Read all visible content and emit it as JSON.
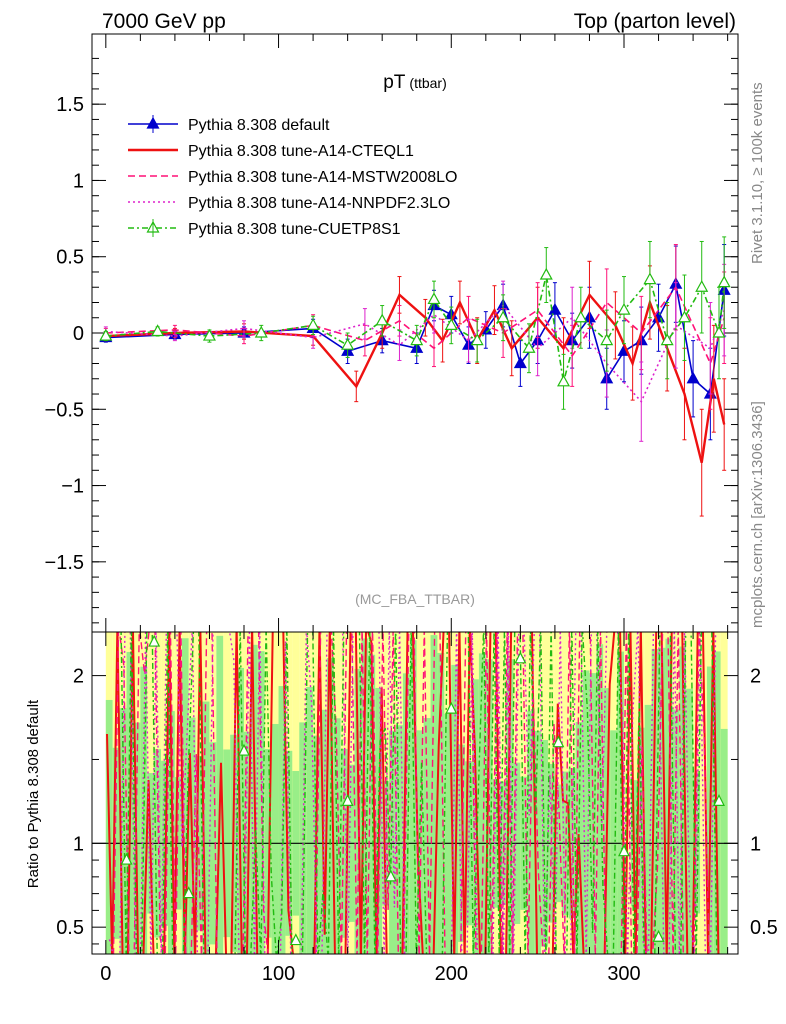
{
  "header": {
    "left": "7000 GeV pp",
    "right": "Top (parton level)"
  },
  "side_labels": {
    "rivet": "Rivet 3.1.10, ≥ 100k events",
    "mcplots": "mcplots.cern.ch [arXiv:1306.3436]"
  },
  "chart_data": {
    "type": "line",
    "title": "pT",
    "title_sub": "(ttbar)",
    "analysis_tag": "(MC_FBA_TTBAR)",
    "xlabel": "",
    "ylabel": "",
    "xlim": [
      -8,
      366
    ],
    "main_ylim": [
      -1.96,
      1.96
    ],
    "main_yticks": [
      {
        "v": 1.5,
        "label": "1.5"
      },
      {
        "v": 1,
        "label": "1"
      },
      {
        "v": 0.5,
        "label": "0.5"
      },
      {
        "v": 0,
        "label": "0"
      },
      {
        "v": -0.5,
        "label": "−0.5"
      },
      {
        "v": -1,
        "label": "−1"
      },
      {
        "v": -1.5,
        "label": "−1.5"
      }
    ],
    "xticks": [
      {
        "v": 0,
        "label": "0"
      },
      {
        "v": 100,
        "label": "100"
      },
      {
        "v": 200,
        "label": "200"
      },
      {
        "v": 300,
        "label": "300"
      }
    ],
    "ratio_ylabel": "Ratio to Pythia 8.308 default",
    "ratio_ylim": [
      0.34,
      2.26
    ],
    "ratio_yticks": [
      {
        "v": 2,
        "label": "2"
      },
      {
        "v": 1,
        "label": "1"
      },
      {
        "v": 0.5,
        "label": "0.5"
      }
    ],
    "legend": [
      {
        "name": "Pythia 8.308 default",
        "color": "#0000cc",
        "style": "solid",
        "marker": "triangle-filled"
      },
      {
        "name": "Pythia 8.308 tune-A14-CTEQL1",
        "color": "#ee1111",
        "style": "solid",
        "marker": "none"
      },
      {
        "name": "Pythia 8.308 tune-A14-MSTW2008LO",
        "color": "#ff1177",
        "style": "dashed",
        "marker": "none"
      },
      {
        "name": "Pythia 8.308 tune-A14-NNPDF2.3LO",
        "color": "#dd22cc",
        "style": "dotted",
        "marker": "none"
      },
      {
        "name": "Pythia 8.308 tune-CUETP8S1",
        "color": "#22bb11",
        "style": "dashdot",
        "marker": "triangle-open"
      }
    ],
    "series": [
      {
        "name": "Pythia 8.308 default",
        "x": [
          0,
          40,
          80,
          120,
          140,
          160,
          180,
          190,
          200,
          210,
          220,
          230,
          240,
          250,
          260,
          270,
          280,
          290,
          300,
          310,
          320,
          330,
          340,
          350,
          358
        ],
        "y": [
          -0.03,
          -0.01,
          0.0,
          0.03,
          -0.12,
          -0.05,
          -0.1,
          0.18,
          0.12,
          -0.08,
          0.02,
          0.18,
          -0.2,
          -0.05,
          0.15,
          -0.05,
          0.1,
          -0.3,
          -0.12,
          -0.05,
          0.1,
          0.32,
          -0.3,
          -0.4,
          0.28
        ],
        "err": [
          0.03,
          0.03,
          0.04,
          0.06,
          0.08,
          0.08,
          0.1,
          0.1,
          0.12,
          0.12,
          0.12,
          0.14,
          0.15,
          0.15,
          0.18,
          0.18,
          0.2,
          0.2,
          0.2,
          0.22,
          0.22,
          0.25,
          0.25,
          0.3,
          0.3
        ]
      },
      {
        "name": "Pythia 8.308 tune-A14-CTEQL1",
        "x": [
          0,
          40,
          80,
          120,
          145,
          160,
          170,
          185,
          195,
          205,
          215,
          225,
          235,
          250,
          265,
          280,
          295,
          305,
          315,
          325,
          335,
          345,
          352,
          358
        ],
        "y": [
          -0.02,
          0.0,
          0.01,
          -0.02,
          -0.35,
          0.0,
          0.25,
          0.1,
          -0.05,
          0.2,
          -0.05,
          0.15,
          -0.1,
          0.1,
          -0.1,
          0.25,
          0.05,
          -0.2,
          0.2,
          -0.1,
          -0.4,
          -0.85,
          -0.3,
          -0.6
        ],
        "err": [
          0.03,
          0.03,
          0.05,
          0.06,
          0.1,
          0.1,
          0.12,
          0.12,
          0.14,
          0.14,
          0.15,
          0.16,
          0.18,
          0.2,
          0.2,
          0.22,
          0.22,
          0.24,
          0.24,
          0.28,
          0.3,
          0.35,
          0.35,
          0.3
        ]
      },
      {
        "name": "Pythia 8.308 tune-A14-MSTW2008LO",
        "x": [
          0,
          40,
          80,
          120,
          150,
          170,
          190,
          210,
          230,
          250,
          270,
          290,
          310,
          330,
          350,
          358
        ],
        "y": [
          0.0,
          0.02,
          -0.02,
          0.05,
          -0.05,
          0.08,
          -0.1,
          0.1,
          0.0,
          0.15,
          -0.15,
          0.2,
          0.0,
          0.3,
          -0.2,
          0.1
        ],
        "err": [
          0.03,
          0.03,
          0.05,
          0.07,
          0.1,
          0.1,
          0.12,
          0.14,
          0.16,
          0.18,
          0.2,
          0.22,
          0.24,
          0.28,
          0.3,
          0.3
        ]
      },
      {
        "name": "Pythia 8.308 tune-A14-NNPDF2.3LO",
        "x": [
          0,
          40,
          80,
          120,
          150,
          170,
          190,
          210,
          230,
          250,
          270,
          290,
          310,
          330,
          350,
          358
        ],
        "y": [
          0.01,
          -0.02,
          0.03,
          -0.03,
          0.06,
          -0.08,
          0.12,
          -0.05,
          0.18,
          -0.1,
          0.1,
          -0.2,
          -0.45,
          0.05,
          -0.1,
          0.15
        ],
        "err": [
          0.03,
          0.03,
          0.05,
          0.07,
          0.1,
          0.1,
          0.12,
          0.14,
          0.16,
          0.18,
          0.2,
          0.22,
          0.26,
          0.28,
          0.3,
          0.3
        ]
      },
      {
        "name": "Pythia 8.308 tune-CUETP8S1",
        "x": [
          0,
          30,
          60,
          90,
          120,
          140,
          160,
          180,
          190,
          200,
          215,
          230,
          245,
          255,
          265,
          275,
          290,
          300,
          315,
          325,
          335,
          345,
          355,
          358
        ],
        "y": [
          -0.02,
          0.01,
          -0.02,
          0.0,
          0.05,
          -0.08,
          0.08,
          -0.05,
          0.22,
          0.05,
          -0.05,
          0.1,
          -0.1,
          0.38,
          -0.32,
          0.1,
          -0.05,
          0.15,
          0.35,
          -0.05,
          0.1,
          0.3,
          0.0,
          0.33
        ],
        "err": [
          0.03,
          0.03,
          0.04,
          0.05,
          0.06,
          0.08,
          0.1,
          0.1,
          0.12,
          0.12,
          0.14,
          0.15,
          0.16,
          0.18,
          0.18,
          0.2,
          0.2,
          0.22,
          0.25,
          0.25,
          0.28,
          0.3,
          0.3,
          0.3
        ]
      }
    ]
  }
}
